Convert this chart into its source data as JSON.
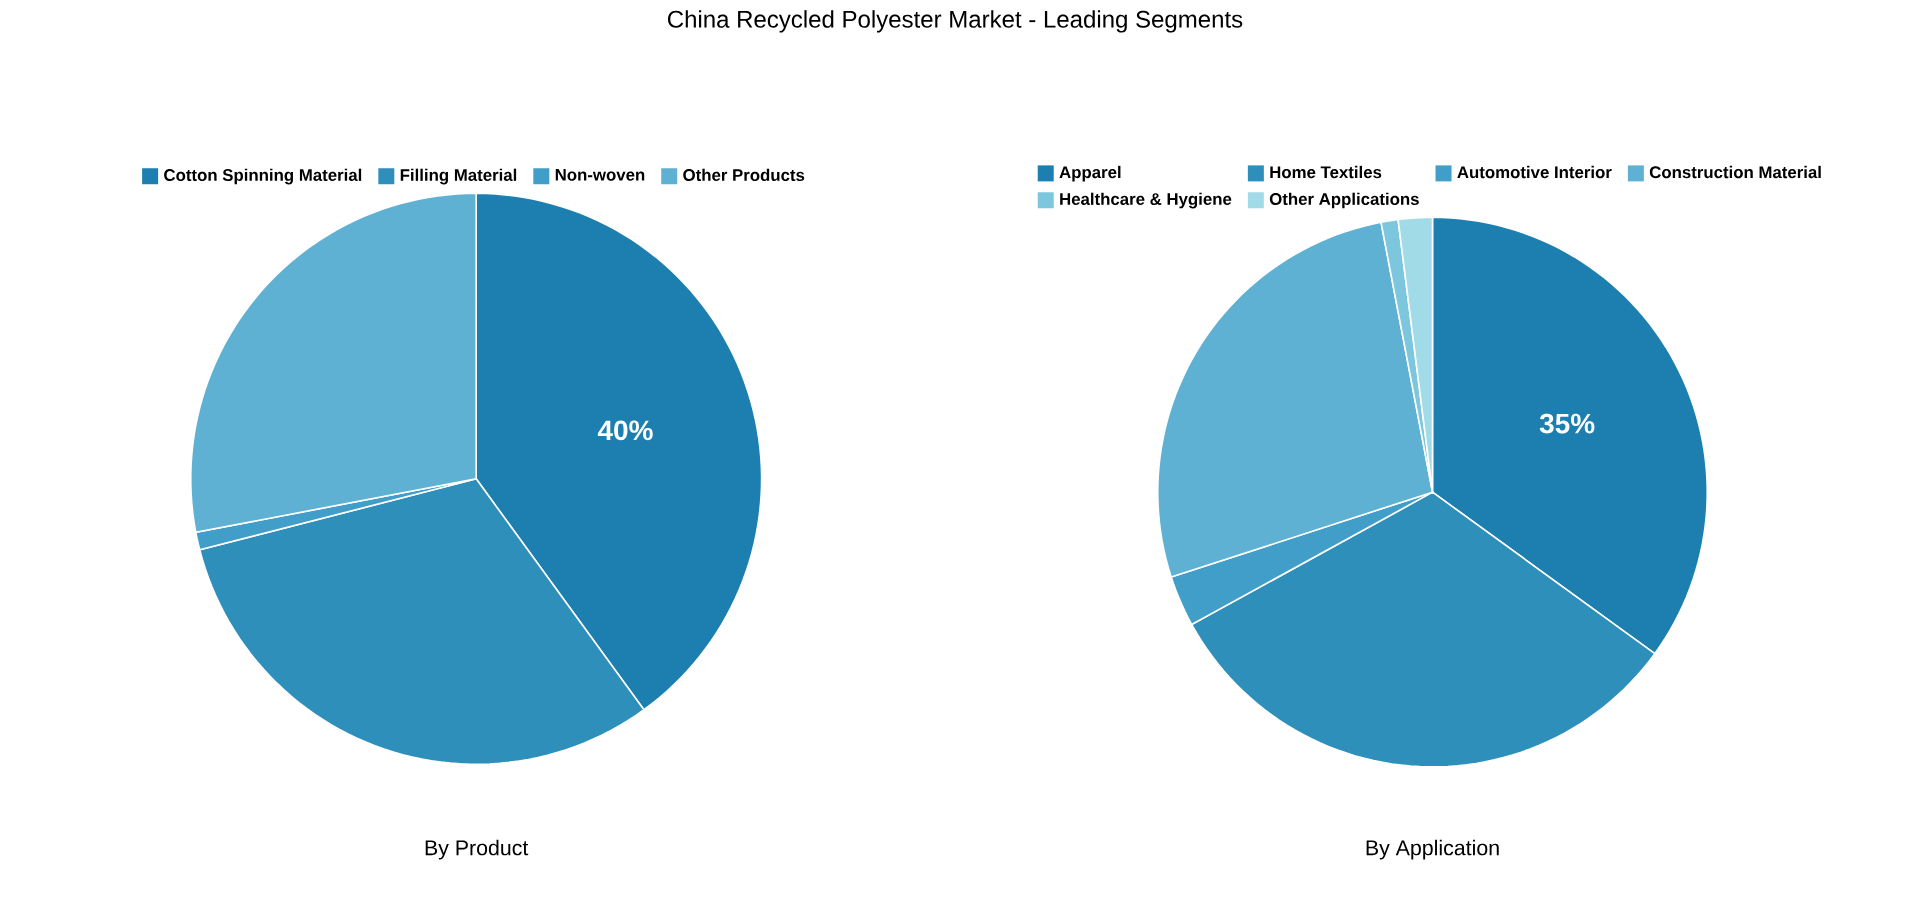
{
  "chart_data": [
    {
      "type": "pie",
      "title": "China Recycled Polyester Market - Leading Segments",
      "subtitle": "By Product",
      "categories": [
        "Cotton Spinning Material",
        "Filling Material",
        "Non-woven",
        "Other Products"
      ],
      "values": [
        40,
        31,
        1,
        28
      ],
      "colors": [
        "#1c7fb0",
        "#2e8fbb",
        "#419ec8",
        "#5fb1d3"
      ],
      "value_labels": [
        "40%",
        null,
        null,
        null
      ],
      "legend": "top"
    },
    {
      "type": "pie",
      "subtitle": "By Application",
      "categories": [
        "Apparel",
        "Home Textiles",
        "Automotive Interior",
        "Construction Material",
        "Healthcare & Hygiene",
        "Other Applications"
      ],
      "values": [
        35,
        32,
        3,
        27,
        1,
        2
      ],
      "colors": [
        "#1c7fb0",
        "#2e8fbb",
        "#419ec8",
        "#5fb1d3",
        "#7cc6de",
        "#a2dbe8"
      ],
      "value_labels": [
        "35%",
        null,
        null,
        null,
        null,
        null
      ],
      "legend": "top"
    }
  ]
}
